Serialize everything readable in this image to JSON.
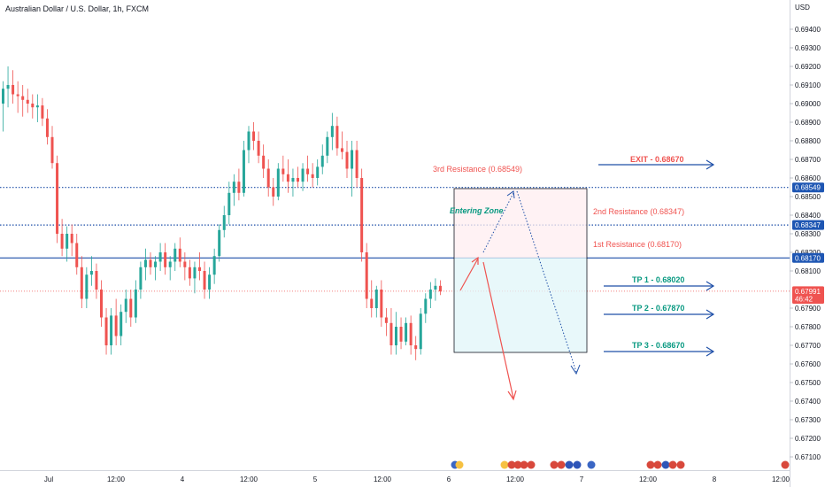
{
  "header": {
    "symbol_title": "Australian Dollar / U.S. Dollar, 1h, FXCM",
    "currency": "USD"
  },
  "colors": {
    "up": "#26a69a",
    "down": "#ef5350",
    "line_blue": "#1e4fa8",
    "tag_blue": "#1e56b3",
    "tag_red": "#ef5350",
    "res_text": "#f0524f",
    "entry_text": "#089981"
  },
  "chart_data": {
    "type": "candlestick",
    "title": "Australian Dollar / U.S. Dollar, 1h, FXCM",
    "ylim": [
      0.6705,
      0.6955
    ],
    "y_ticks": [
      "0.69400",
      "0.69300",
      "0.69200",
      "0.69100",
      "0.69000",
      "0.68900",
      "0.68800",
      "0.68700",
      "0.68600",
      "0.68500",
      "0.68400",
      "0.68300",
      "0.68200",
      "0.68100",
      "0.67900",
      "0.67800",
      "0.67700",
      "0.67600",
      "0.67500",
      "0.67400",
      "0.67300",
      "0.67200",
      "0.67100"
    ],
    "x_ticks": [
      "Jul",
      "12:00",
      "4",
      "12:00",
      "5",
      "12:00",
      "6",
      "12:00",
      "7",
      "12:00",
      "8",
      "12:00"
    ],
    "price_tags": [
      {
        "label": "0.68549",
        "value": 0.68549,
        "color": "blue"
      },
      {
        "label": "0.68347",
        "value": 0.68347,
        "color": "blue"
      },
      {
        "label": "0.68170",
        "value": 0.6817,
        "color": "blue"
      },
      {
        "label": "0.67991",
        "value": 0.67991,
        "color": "red"
      },
      {
        "label": "46:42",
        "value": 0.6795,
        "color": "red"
      }
    ],
    "levels": [
      {
        "value": 0.68549,
        "style": "dotted"
      },
      {
        "value": 0.68347,
        "style": "dotted"
      },
      {
        "value": 0.6817,
        "style": "solid"
      },
      {
        "value": 0.67991,
        "style": "dotted-red"
      }
    ],
    "annotations": [
      {
        "text": "3rd Resistance (0.68549)",
        "color": "res"
      },
      {
        "text": "2nd Resistance (0.68347)",
        "color": "res"
      },
      {
        "text": "1st Resistance (0.68170)",
        "color": "res"
      },
      {
        "text": "Entering Zone",
        "color": "entry"
      }
    ],
    "targets": [
      {
        "label": "EXIT - 0.68670",
        "color": "red"
      },
      {
        "label": "TP 1 - 0.68020",
        "color": "green"
      },
      {
        "label": "TP 2 - 0.67870",
        "color": "green"
      },
      {
        "label": "TP 3 - 0.68670",
        "color": "green"
      }
    ],
    "zone": {
      "top": 0.68549,
      "mid": 0.6817,
      "bottom": 0.6766
    },
    "candles": [
      {
        "o": 0.69,
        "h": 0.6912,
        "l": 0.6885,
        "c": 0.6908
      },
      {
        "o": 0.6908,
        "h": 0.692,
        "l": 0.6898,
        "c": 0.691
      },
      {
        "o": 0.691,
        "h": 0.6918,
        "l": 0.69,
        "c": 0.6905
      },
      {
        "o": 0.6905,
        "h": 0.6912,
        "l": 0.6895,
        "c": 0.6904
      },
      {
        "o": 0.6904,
        "h": 0.691,
        "l": 0.6893,
        "c": 0.6902
      },
      {
        "o": 0.6902,
        "h": 0.6908,
        "l": 0.6895,
        "c": 0.69
      },
      {
        "o": 0.69,
        "h": 0.6905,
        "l": 0.6892,
        "c": 0.6898
      },
      {
        "o": 0.6898,
        "h": 0.6905,
        "l": 0.689,
        "c": 0.6899
      },
      {
        "o": 0.6899,
        "h": 0.6903,
        "l": 0.6888,
        "c": 0.6892
      },
      {
        "o": 0.6892,
        "h": 0.6897,
        "l": 0.6878,
        "c": 0.6882
      },
      {
        "o": 0.6882,
        "h": 0.6888,
        "l": 0.6865,
        "c": 0.6868
      },
      {
        "o": 0.6868,
        "h": 0.6872,
        "l": 0.6825,
        "c": 0.683
      },
      {
        "o": 0.683,
        "h": 0.6838,
        "l": 0.6818,
        "c": 0.6822
      },
      {
        "o": 0.6822,
        "h": 0.6834,
        "l": 0.6815,
        "c": 0.683
      },
      {
        "o": 0.683,
        "h": 0.6835,
        "l": 0.6818,
        "c": 0.6825
      },
      {
        "o": 0.6825,
        "h": 0.683,
        "l": 0.6808,
        "c": 0.6812
      },
      {
        "o": 0.6812,
        "h": 0.6818,
        "l": 0.679,
        "c": 0.6795
      },
      {
        "o": 0.6795,
        "h": 0.6812,
        "l": 0.679,
        "c": 0.6808
      },
      {
        "o": 0.6808,
        "h": 0.6818,
        "l": 0.6802,
        "c": 0.681
      },
      {
        "o": 0.681,
        "h": 0.6814,
        "l": 0.6795,
        "c": 0.68
      },
      {
        "o": 0.68,
        "h": 0.6805,
        "l": 0.678,
        "c": 0.6785
      },
      {
        "o": 0.6785,
        "h": 0.679,
        "l": 0.6765,
        "c": 0.677
      },
      {
        "o": 0.677,
        "h": 0.679,
        "l": 0.6765,
        "c": 0.6786
      },
      {
        "o": 0.6786,
        "h": 0.6795,
        "l": 0.677,
        "c": 0.6775
      },
      {
        "o": 0.6775,
        "h": 0.6792,
        "l": 0.677,
        "c": 0.6788
      },
      {
        "o": 0.6788,
        "h": 0.68,
        "l": 0.6782,
        "c": 0.6795
      },
      {
        "o": 0.6795,
        "h": 0.68,
        "l": 0.678,
        "c": 0.6785
      },
      {
        "o": 0.6785,
        "h": 0.6805,
        "l": 0.6782,
        "c": 0.68
      },
      {
        "o": 0.68,
        "h": 0.6815,
        "l": 0.6795,
        "c": 0.6812
      },
      {
        "o": 0.6812,
        "h": 0.6822,
        "l": 0.6805,
        "c": 0.6816
      },
      {
        "o": 0.6816,
        "h": 0.682,
        "l": 0.6808,
        "c": 0.6812
      },
      {
        "o": 0.6812,
        "h": 0.6818,
        "l": 0.6805,
        "c": 0.6815
      },
      {
        "o": 0.6815,
        "h": 0.6825,
        "l": 0.681,
        "c": 0.682
      },
      {
        "o": 0.682,
        "h": 0.6825,
        "l": 0.6808,
        "c": 0.6812
      },
      {
        "o": 0.6812,
        "h": 0.6818,
        "l": 0.6805,
        "c": 0.6815
      },
      {
        "o": 0.6815,
        "h": 0.6825,
        "l": 0.681,
        "c": 0.6822
      },
      {
        "o": 0.6822,
        "h": 0.6828,
        "l": 0.6812,
        "c": 0.6815
      },
      {
        "o": 0.6815,
        "h": 0.682,
        "l": 0.6805,
        "c": 0.6812
      },
      {
        "o": 0.6812,
        "h": 0.6816,
        "l": 0.6802,
        "c": 0.6806
      },
      {
        "o": 0.6806,
        "h": 0.6815,
        "l": 0.6798,
        "c": 0.6812
      },
      {
        "o": 0.6812,
        "h": 0.682,
        "l": 0.6805,
        "c": 0.681
      },
      {
        "o": 0.681,
        "h": 0.6815,
        "l": 0.6795,
        "c": 0.68
      },
      {
        "o": 0.68,
        "h": 0.6812,
        "l": 0.6795,
        "c": 0.6808
      },
      {
        "o": 0.6808,
        "h": 0.6822,
        "l": 0.6803,
        "c": 0.6818
      },
      {
        "o": 0.6818,
        "h": 0.6835,
        "l": 0.6815,
        "c": 0.6832
      },
      {
        "o": 0.6832,
        "h": 0.6845,
        "l": 0.6828,
        "c": 0.684
      },
      {
        "o": 0.684,
        "h": 0.6858,
        "l": 0.6835,
        "c": 0.6852
      },
      {
        "o": 0.6852,
        "h": 0.6862,
        "l": 0.6845,
        "c": 0.6858
      },
      {
        "o": 0.6858,
        "h": 0.6865,
        "l": 0.6848,
        "c": 0.6852
      },
      {
        "o": 0.6852,
        "h": 0.688,
        "l": 0.685,
        "c": 0.6875
      },
      {
        "o": 0.6875,
        "h": 0.6888,
        "l": 0.6868,
        "c": 0.6885
      },
      {
        "o": 0.6885,
        "h": 0.689,
        "l": 0.6875,
        "c": 0.688
      },
      {
        "o": 0.688,
        "h": 0.6885,
        "l": 0.6868,
        "c": 0.6872
      },
      {
        "o": 0.6872,
        "h": 0.6878,
        "l": 0.686,
        "c": 0.6865
      },
      {
        "o": 0.6865,
        "h": 0.687,
        "l": 0.685,
        "c": 0.6855
      },
      {
        "o": 0.6855,
        "h": 0.686,
        "l": 0.6845,
        "c": 0.685
      },
      {
        "o": 0.685,
        "h": 0.6868,
        "l": 0.6848,
        "c": 0.6865
      },
      {
        "o": 0.6865,
        "h": 0.6872,
        "l": 0.6858,
        "c": 0.6862
      },
      {
        "o": 0.6862,
        "h": 0.687,
        "l": 0.6852,
        "c": 0.6858
      },
      {
        "o": 0.6858,
        "h": 0.6865,
        "l": 0.685,
        "c": 0.686
      },
      {
        "o": 0.686,
        "h": 0.6866,
        "l": 0.6855,
        "c": 0.6858
      },
      {
        "o": 0.6858,
        "h": 0.6868,
        "l": 0.6853,
        "c": 0.6865
      },
      {
        "o": 0.6865,
        "h": 0.6872,
        "l": 0.6858,
        "c": 0.6862
      },
      {
        "o": 0.6862,
        "h": 0.6868,
        "l": 0.6855,
        "c": 0.686
      },
      {
        "o": 0.686,
        "h": 0.687,
        "l": 0.6856,
        "c": 0.6866
      },
      {
        "o": 0.6866,
        "h": 0.6878,
        "l": 0.6862,
        "c": 0.6872
      },
      {
        "o": 0.6872,
        "h": 0.6885,
        "l": 0.6868,
        "c": 0.6882
      },
      {
        "o": 0.6882,
        "h": 0.6895,
        "l": 0.6875,
        "c": 0.6888
      },
      {
        "o": 0.6888,
        "h": 0.6893,
        "l": 0.6872,
        "c": 0.6876
      },
      {
        "o": 0.6876,
        "h": 0.6885,
        "l": 0.687,
        "c": 0.6874
      },
      {
        "o": 0.6874,
        "h": 0.688,
        "l": 0.686,
        "c": 0.6865
      },
      {
        "o": 0.6865,
        "h": 0.688,
        "l": 0.685,
        "c": 0.6875
      },
      {
        "o": 0.6875,
        "h": 0.688,
        "l": 0.6855,
        "c": 0.686
      },
      {
        "o": 0.686,
        "h": 0.6865,
        "l": 0.6815,
        "c": 0.682
      },
      {
        "o": 0.682,
        "h": 0.6825,
        "l": 0.679,
        "c": 0.6795
      },
      {
        "o": 0.6795,
        "h": 0.6805,
        "l": 0.6785,
        "c": 0.679
      },
      {
        "o": 0.679,
        "h": 0.6802,
        "l": 0.6785,
        "c": 0.68
      },
      {
        "o": 0.68,
        "h": 0.6805,
        "l": 0.678,
        "c": 0.6785
      },
      {
        "o": 0.6785,
        "h": 0.679,
        "l": 0.6775,
        "c": 0.6782
      },
      {
        "o": 0.6782,
        "h": 0.679,
        "l": 0.6765,
        "c": 0.677
      },
      {
        "o": 0.677,
        "h": 0.6788,
        "l": 0.6765,
        "c": 0.678
      },
      {
        "o": 0.678,
        "h": 0.6785,
        "l": 0.6768,
        "c": 0.6772
      },
      {
        "o": 0.6772,
        "h": 0.6785,
        "l": 0.677,
        "c": 0.6782
      },
      {
        "o": 0.6782,
        "h": 0.6786,
        "l": 0.6765,
        "c": 0.677
      },
      {
        "o": 0.677,
        "h": 0.6775,
        "l": 0.6762,
        "c": 0.6768
      },
      {
        "o": 0.6768,
        "h": 0.679,
        "l": 0.6765,
        "c": 0.6787
      },
      {
        "o": 0.6787,
        "h": 0.6798,
        "l": 0.6782,
        "c": 0.6795
      },
      {
        "o": 0.6795,
        "h": 0.6804,
        "l": 0.679,
        "c": 0.68
      },
      {
        "o": 0.68,
        "h": 0.6806,
        "l": 0.6794,
        "c": 0.6802
      },
      {
        "o": 0.6802,
        "h": 0.6805,
        "l": 0.6797,
        "c": 0.6799
      }
    ]
  }
}
